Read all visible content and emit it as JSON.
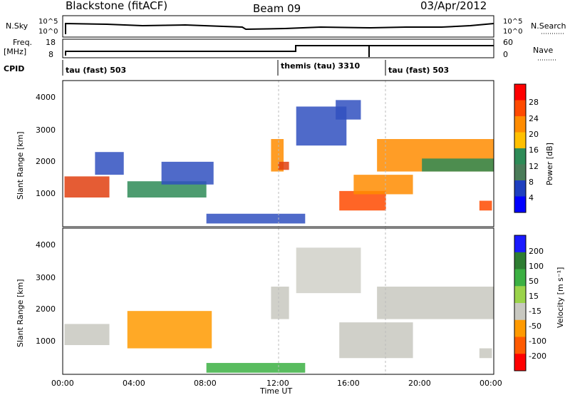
{
  "header": {
    "station": "Blackstone (fitACF)",
    "beam": "Beam 09",
    "date": "03/Apr/2012"
  },
  "top_panels": {
    "nsky_label": "N.Sky",
    "nsky_ticks": [
      "10^5",
      "10^0"
    ],
    "nsearch_label": "N.Search",
    "nsearch_ticks": [
      "10^5",
      "10^0"
    ],
    "freq_label": "Freq.",
    "freq_unit": "[MHz]",
    "freq_ticks": [
      "18",
      "8"
    ],
    "nave_label": "Nave",
    "nave_ticks": [
      "60",
      "0"
    ],
    "cpid_label": "CPID",
    "cpid_segments": [
      {
        "label": "tau (fast) 503",
        "start_hour": 0
      },
      {
        "label": "themis (tau) 3310",
        "start_hour": 12
      },
      {
        "label": "tau (fast) 503",
        "start_hour": 18
      }
    ]
  },
  "time_axis": {
    "label": "Time UT",
    "ticks": [
      "00:00",
      "04:00",
      "08:00",
      "12:00",
      "16:00",
      "20:00",
      "00:00"
    ]
  },
  "chart_data": [
    {
      "type": "heatmap",
      "name": "power",
      "ylabel": "Slant Range [km]",
      "xlim": [
        0,
        24
      ],
      "ylim": [
        0,
        4500
      ],
      "yticks": [
        "1000",
        "2000",
        "3000",
        "4000"
      ],
      "colorbar_label": "Power [dB]",
      "colorbar_ticks": [
        "28",
        "24",
        "20",
        "16",
        "12",
        "8",
        "4"
      ],
      "colorbar_colors": [
        "#ff0000",
        "#ff4a00",
        "#ff8c00",
        "#ffc000",
        "#2e8b57",
        "#4a7c59",
        "#1e3fbf",
        "#0000ff"
      ],
      "regions": [
        {
          "x0": 0.1,
          "x1": 2.6,
          "y0": 900,
          "y1": 1550,
          "color": "#e04010"
        },
        {
          "x0": 1.8,
          "x1": 3.4,
          "y0": 1600,
          "y1": 2300,
          "color": "#3050c0"
        },
        {
          "x0": 3.6,
          "x1": 8.0,
          "y0": 900,
          "y1": 1400,
          "color": "#2e8b57"
        },
        {
          "x0": 5.5,
          "x1": 8.4,
          "y0": 1300,
          "y1": 2000,
          "color": "#3050c0"
        },
        {
          "x0": 11.6,
          "x1": 12.3,
          "y0": 1700,
          "y1": 2700,
          "color": "#ff8c00"
        },
        {
          "x0": 12.0,
          "x1": 12.6,
          "y0": 1750,
          "y1": 2000,
          "color": "#e04010"
        },
        {
          "x0": 13.0,
          "x1": 15.8,
          "y0": 2500,
          "y1": 3700,
          "color": "#3050c0"
        },
        {
          "x0": 15.2,
          "x1": 16.6,
          "y0": 3300,
          "y1": 3900,
          "color": "#3050c0"
        },
        {
          "x0": 15.4,
          "x1": 18.0,
          "y0": 500,
          "y1": 1100,
          "color": "#ff4a00"
        },
        {
          "x0": 16.2,
          "x1": 19.5,
          "y0": 1000,
          "y1": 1600,
          "color": "#ff8c00"
        },
        {
          "x0": 17.5,
          "x1": 24.0,
          "y0": 1700,
          "y1": 2700,
          "color": "#ff8c00"
        },
        {
          "x0": 20.0,
          "x1": 24.0,
          "y0": 1700,
          "y1": 2100,
          "color": "#2e8b57"
        },
        {
          "x0": 8.0,
          "x1": 13.5,
          "y0": 100,
          "y1": 400,
          "color": "#3050c0"
        },
        {
          "x0": 23.2,
          "x1": 23.9,
          "y0": 500,
          "y1": 800,
          "color": "#ff4a00"
        }
      ]
    },
    {
      "type": "heatmap",
      "name": "velocity",
      "ylabel": "Slant Range [km]",
      "xlim": [
        0,
        24
      ],
      "ylim": [
        0,
        4500
      ],
      "yticks": [
        "1000",
        "2000",
        "3000",
        "4000"
      ],
      "colorbar_label": "Velocity [m s⁻¹]",
      "colorbar_ticks": [
        "200",
        "100",
        "50",
        "15",
        "-15",
        "-50",
        "-100",
        "-200"
      ],
      "colorbar_colors": [
        "#1a1aff",
        "#2e7d32",
        "#3cb043",
        "#9ad34a",
        "#c8c8c0",
        "#ff9a00",
        "#ff5a00",
        "#ff0000"
      ],
      "regions": [
        {
          "x0": 0.1,
          "x1": 2.6,
          "y0": 900,
          "y1": 1550,
          "color": "#c8c8c0"
        },
        {
          "x0": 3.6,
          "x1": 8.3,
          "y0": 800,
          "y1": 1950,
          "color": "#ff9a00"
        },
        {
          "x0": 11.6,
          "x1": 12.6,
          "y0": 1700,
          "y1": 2700,
          "color": "#c8c8c0"
        },
        {
          "x0": 13.0,
          "x1": 16.6,
          "y0": 2500,
          "y1": 3900,
          "color": "#d0d0c8"
        },
        {
          "x0": 15.4,
          "x1": 19.5,
          "y0": 500,
          "y1": 1600,
          "color": "#c8c8c0"
        },
        {
          "x0": 17.5,
          "x1": 24.0,
          "y0": 1700,
          "y1": 2700,
          "color": "#c8c8c0"
        },
        {
          "x0": 8.0,
          "x1": 13.5,
          "y0": 50,
          "y1": 350,
          "color": "#3cb043"
        },
        {
          "x0": 23.2,
          "x1": 23.9,
          "y0": 500,
          "y1": 800,
          "color": "#c8c8c0"
        }
      ]
    }
  ]
}
